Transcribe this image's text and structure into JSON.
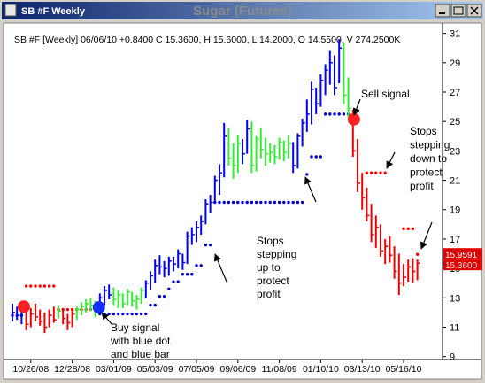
{
  "window": {
    "title": "SB #F Weekly"
  },
  "chart_data": {
    "type": "ohlc",
    "title": "Sugar (Futures)",
    "info": "SB #F [Weekly] 06/06/10 +0.8400 C 15.3600, H 15.6000, L 14.2000, O 14.5500, V 274.2500K",
    "categories": [
      null,
      null,
      null,
      null,
      "10/26/08",
      null,
      null,
      null,
      null,
      null,
      null,
      null,
      null,
      "12/28/08",
      null,
      null,
      null,
      null,
      null,
      null,
      null,
      null,
      "03/01/09",
      null,
      null,
      null,
      null,
      null,
      null,
      null,
      null,
      "05/03/09",
      null,
      null,
      null,
      null,
      null,
      null,
      null,
      null,
      "07/05/09",
      null,
      null,
      null,
      null,
      null,
      null,
      null,
      null,
      "09/06/09",
      null,
      null,
      null,
      null,
      null,
      null,
      null,
      null,
      "11/08/09",
      null,
      null,
      null,
      null,
      null,
      null,
      null,
      null,
      "01/10/10",
      null,
      null,
      null,
      null,
      null,
      null,
      null,
      null,
      "03/13/10",
      null,
      null,
      null,
      null,
      null,
      null,
      null,
      null,
      "05/16/10",
      null,
      null,
      null
    ],
    "high": [
      12.6,
      12.4,
      12.8,
      12.5,
      12.3,
      12.6,
      12.2,
      12.0,
      12.2,
      12.4,
      12.5,
      12.3,
      11.9,
      12.1,
      12.4,
      12.7,
      12.9,
      13.0,
      12.8,
      13.3,
      13.8,
      13.9,
      13.7,
      13.5,
      13.3,
      13.6,
      13.4,
      13.2,
      13.7,
      14.2,
      14.8,
      15.6,
      15.9,
      15.5,
      15.8,
      15.8,
      16.3,
      16.0,
      17.5,
      17.8,
      18.2,
      18.6,
      19.7,
      20.0,
      21.3,
      22.1,
      24.9,
      24.6,
      23.5,
      24.1,
      23.8,
      25.1,
      25.0,
      24.0,
      24.6,
      23.9,
      23.5,
      23.4,
      23.9,
      23.7,
      24.1,
      23.6,
      24.2,
      25.2,
      26.5,
      27.7,
      27.3,
      28.2,
      28.9,
      29.8,
      29.5,
      30.6,
      30.4,
      28.0,
      25.8,
      23.8,
      21.5,
      20.5,
      19.4,
      18.6,
      18.0,
      17.0,
      17.2,
      16.5,
      16.0,
      15.3,
      15.6,
      15.7,
      15.6
    ],
    "low": [
      11.4,
      11.5,
      11.2,
      10.8,
      11.0,
      11.4,
      11.1,
      10.6,
      11.0,
      11.3,
      11.6,
      11.2,
      10.8,
      11.0,
      11.5,
      11.8,
      12.0,
      12.1,
      11.7,
      12.0,
      12.5,
      12.9,
      12.5,
      12.3,
      12.3,
      12.5,
      12.4,
      12.2,
      12.6,
      13.0,
      13.5,
      14.0,
      14.6,
      14.4,
      14.5,
      14.8,
      15.0,
      14.9,
      15.3,
      16.6,
      16.8,
      17.3,
      18.0,
      18.8,
      19.4,
      20.0,
      21.2,
      22.0,
      21.1,
      21.5,
      22.1,
      22.8,
      21.5,
      21.6,
      22.5,
      22.0,
      22.2,
      22.1,
      22.4,
      22.3,
      22.5,
      21.5,
      21.8,
      23.3,
      24.3,
      24.8,
      25.5,
      26.0,
      26.8,
      27.5,
      26.8,
      27.6,
      26.2,
      25.3,
      22.6,
      20.2,
      19.0,
      18.2,
      16.8,
      16.4,
      15.8,
      15.3,
      15.4,
      14.3,
      13.2,
      13.8,
      14.1,
      14.0,
      14.2
    ],
    "close": [
      12.0,
      11.8,
      12.2,
      11.2,
      11.9,
      11.7,
      11.4,
      11.0,
      11.8,
      11.5,
      12.1,
      11.6,
      11.3,
      11.9,
      12.2,
      12.4,
      12.6,
      12.5,
      12.3,
      13.0,
      13.5,
      13.2,
      12.9,
      13.2,
      12.6,
      13.4,
      12.8,
      12.9,
      13.5,
      14.0,
      14.5,
      15.2,
      15.1,
      15.0,
      15.5,
      15.3,
      16.0,
      15.4,
      17.2,
      17.3,
      17.8,
      18.2,
      19.4,
      19.5,
      21.0,
      21.5,
      24.0,
      22.5,
      22.0,
      23.5,
      22.8,
      24.5,
      22.0,
      23.8,
      23.1,
      22.8,
      22.9,
      22.6,
      23.6,
      22.9,
      23.5,
      22.0,
      24.0,
      24.9,
      25.5,
      27.2,
      26.2,
      27.8,
      28.5,
      29.0,
      27.3,
      30.0,
      26.8,
      25.9,
      23.0,
      20.8,
      19.8,
      18.6,
      17.3,
      17.8,
      16.2,
      16.5,
      15.9,
      14.8,
      14.0,
      14.4,
      15.1,
      14.8,
      15.36
    ],
    "bar_colors": [
      "#0000ee",
      "#0000ee",
      "#0000ee",
      "#ee0000",
      "#ee0000",
      "#ee0000",
      "#ee0000",
      "#ee0000",
      "#ee0000",
      "#ee0000",
      "#33ee33",
      "#ee0000",
      "#ee0000",
      "#ee0000",
      "#33ee33",
      "#33ee33",
      "#33ee33",
      "#33ee33",
      "#33ee33",
      "#0000ee",
      "#0000ee",
      "#0000ee",
      "#33ee33",
      "#33ee33",
      "#33ee33",
      "#33ee33",
      "#33ee33",
      "#33ee33",
      "#33ee33",
      "#0000ee",
      "#0000ee",
      "#0000ee",
      "#0000ee",
      "#0000ee",
      "#0000ee",
      "#0000ee",
      "#0000ee",
      "#0000ee",
      "#0000ee",
      "#0000ee",
      "#0000ee",
      "#0000ee",
      "#0000ee",
      "#0000ee",
      "#0000ee",
      "#0000ee",
      "#0000ee",
      "#33ee33",
      "#33ee33",
      "#33ee33",
      "#0000ee",
      "#0000ee",
      "#33ee33",
      "#33ee33",
      "#33ee33",
      "#33ee33",
      "#33ee33",
      "#33ee33",
      "#33ee33",
      "#33ee33",
      "#33ee33",
      "#0000ee",
      "#0000ee",
      "#0000ee",
      "#0000ee",
      "#0000ee",
      "#0000ee",
      "#0000ee",
      "#0000ee",
      "#0000ee",
      "#0000ee",
      "#0000ee",
      "#33ee33",
      "#33ee33",
      "#ee0000",
      "#ee0000",
      "#ee0000",
      "#ee0000",
      "#ee0000",
      "#ee0000",
      "#ee0000",
      "#ee0000",
      "#ee0000",
      "#ee0000",
      "#ee0000",
      "#ee0000",
      "#ee0000",
      "#ee0000",
      "#ee0000"
    ],
    "stops": [
      11.8,
      11.8,
      11.8,
      13.8,
      13.8,
      13.8,
      13.8,
      13.8,
      13.8,
      13.8,
      12.2,
      12.2,
      12.2,
      12.2,
      12.2,
      12.2,
      12.2,
      12.2,
      12.2,
      11.9,
      11.9,
      11.9,
      11.9,
      11.9,
      11.9,
      11.9,
      11.9,
      11.9,
      11.9,
      11.9,
      12.5,
      12.5,
      13.1,
      13.1,
      13.6,
      14.1,
      14.1,
      14.6,
      14.6,
      14.6,
      15.2,
      15.2,
      16.6,
      16.6,
      19.5,
      19.5,
      19.5,
      19.5,
      19.5,
      19.5,
      19.5,
      19.5,
      19.5,
      19.5,
      19.5,
      19.5,
      19.5,
      19.5,
      19.5,
      19.5,
      19.5,
      19.5,
      19.5,
      19.5,
      21.4,
      22.6,
      22.6,
      22.6,
      25.5,
      25.5,
      25.5,
      25.5,
      25.5,
      25.5,
      null,
      null,
      null,
      21.5,
      21.5,
      21.5,
      21.5,
      21.5,
      null,
      null,
      null,
      17.7,
      17.7,
      17.7,
      15.9591
    ],
    "stop_colors": [
      "#0000cc",
      "#0000cc",
      "#0000cc",
      "#ff0000",
      "#ff0000",
      "#ff0000",
      "#ff0000",
      "#ff0000",
      "#ff0000",
      "#ff0000",
      "#ff0000",
      "#ff0000",
      "#ff0000",
      "#ff0000",
      "#ff0000",
      "#ff0000",
      "#ff0000",
      "#ff0000",
      "#ff0000",
      "#0000cc",
      "#0000cc",
      "#0000cc",
      "#0000cc",
      "#0000cc",
      "#0000cc",
      "#0000cc",
      "#0000cc",
      "#0000cc",
      "#0000cc",
      "#0000cc",
      "#0000cc",
      "#0000cc",
      "#0000cc",
      "#0000cc",
      "#0000cc",
      "#0000cc",
      "#0000cc",
      "#0000cc",
      "#0000cc",
      "#0000cc",
      "#0000cc",
      "#0000cc",
      "#0000cc",
      "#0000cc",
      "#0000cc",
      "#0000cc",
      "#0000cc",
      "#0000cc",
      "#0000cc",
      "#0000cc",
      "#0000cc",
      "#0000cc",
      "#0000cc",
      "#0000cc",
      "#0000cc",
      "#0000cc",
      "#0000cc",
      "#0000cc",
      "#0000cc",
      "#0000cc",
      "#0000cc",
      "#0000cc",
      "#0000cc",
      "#0000cc",
      "#0000cc",
      "#0000cc",
      "#0000cc",
      "#0000cc",
      "#0000cc",
      "#0000cc",
      "#0000cc",
      "#0000cc",
      "#0000cc",
      "#0000cc",
      null,
      null,
      null,
      "#ff0000",
      "#ff0000",
      "#ff0000",
      "#ff0000",
      "#ff0000",
      null,
      null,
      null,
      "#ff0000",
      "#ff0000",
      "#ff0000",
      "#ff0000"
    ],
    "signals": [
      {
        "x": 2.5,
        "value": 12.4,
        "color": "#ff2020"
      },
      {
        "x": 18.8,
        "value": 12.35,
        "color": "#1030ff"
      },
      {
        "x": 74.2,
        "value": 25.15,
        "color": "#ff2020"
      }
    ],
    "ylim": [
      8.8,
      31.7
    ],
    "yticks": [
      9,
      11,
      13,
      15,
      17,
      19,
      21,
      23,
      25,
      27,
      29,
      31
    ],
    "price_labels": [
      "15.9591",
      "15.3600"
    ],
    "annotations": {
      "sell": [
        "Sell signal"
      ],
      "stops_down": [
        "Stops",
        "stepping",
        "down to",
        "protect",
        "profit"
      ],
      "stops_up": [
        "Stops",
        "stepping",
        "up to",
        "protect",
        "profit"
      ],
      "buy": [
        "Buy signal",
        "with blue dot",
        "and blue bar"
      ]
    }
  }
}
